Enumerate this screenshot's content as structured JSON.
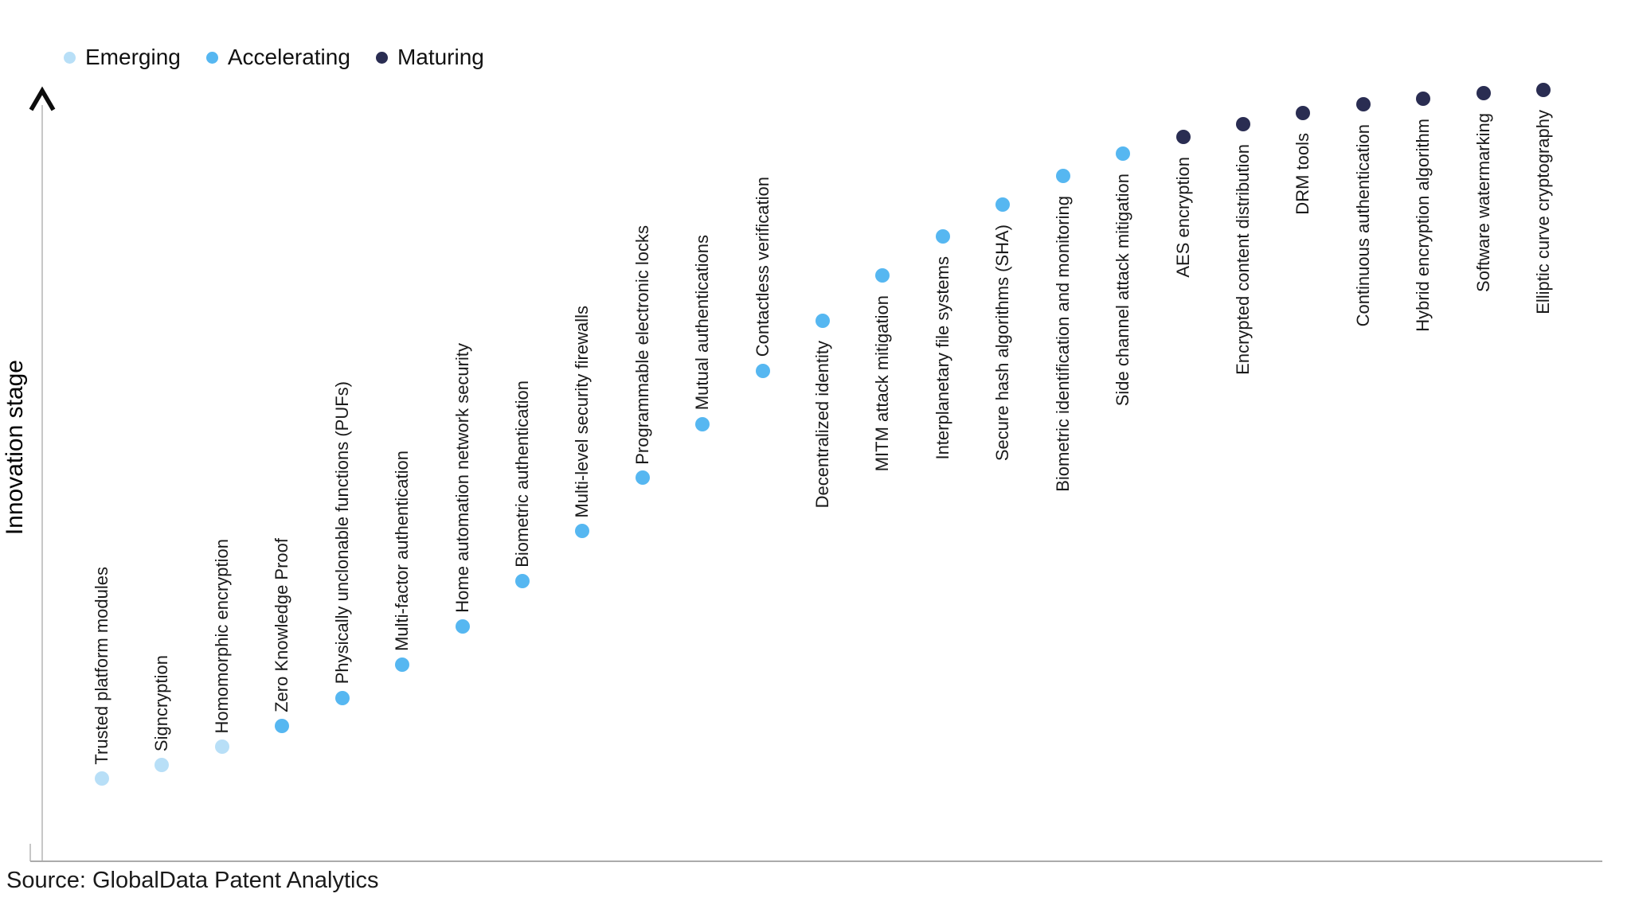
{
  "legend": {
    "items": [
      {
        "label": "Emerging",
        "color": "#b8dff7"
      },
      {
        "label": "Accelerating",
        "color": "#56b7f1"
      },
      {
        "label": "Maturing",
        "color": "#2a2d52"
      }
    ]
  },
  "axis": {
    "y_label": "Innovation stage"
  },
  "source": "Source: GlobalData Patent Analytics",
  "chart_data": {
    "type": "scatter",
    "title": "",
    "xlabel": "",
    "ylabel": "Innovation stage",
    "grid": false,
    "legend_position": "top-left",
    "legend": [
      "Emerging",
      "Accelerating",
      "Maturing"
    ],
    "y_axis": {
      "numeric_ticks": false,
      "arrow": true,
      "range_norm": [
        0,
        1
      ]
    },
    "x_axis": {
      "numeric_ticks": false,
      "note": "points evenly spaced in maturity order"
    },
    "points": [
      {
        "label": "Trusted platform modules",
        "stage": "Emerging",
        "innovation": 0.107,
        "label_side": "above"
      },
      {
        "label": "Signcryption",
        "stage": "Emerging",
        "innovation": 0.124,
        "label_side": "above"
      },
      {
        "label": "Homomorphic encryption",
        "stage": "Emerging",
        "innovation": 0.147,
        "label_side": "above"
      },
      {
        "label": "Zero Knowledge Proof",
        "stage": "Accelerating",
        "innovation": 0.174,
        "label_side": "above"
      },
      {
        "label": "Physically unclonable functions (PUFs)",
        "stage": "Accelerating",
        "innovation": 0.21,
        "label_side": "above"
      },
      {
        "label": "Multi-factor authentication",
        "stage": "Accelerating",
        "innovation": 0.252,
        "label_side": "above"
      },
      {
        "label": "Home automation network security",
        "stage": "Accelerating",
        "innovation": 0.301,
        "label_side": "above"
      },
      {
        "label": "Biometric authentication",
        "stage": "Accelerating",
        "innovation": 0.359,
        "label_side": "above"
      },
      {
        "label": "Multi-level security firewalls",
        "stage": "Accelerating",
        "innovation": 0.423,
        "label_side": "above"
      },
      {
        "label": "Programmable electronic locks",
        "stage": "Accelerating",
        "innovation": 0.491,
        "label_side": "above"
      },
      {
        "label": "Mutual authentications",
        "stage": "Accelerating",
        "innovation": 0.56,
        "label_side": "above"
      },
      {
        "label": "Contactless verification",
        "stage": "Accelerating",
        "innovation": 0.628,
        "label_side": "above"
      },
      {
        "label": "Decentralized identity",
        "stage": "Accelerating",
        "innovation": 0.692,
        "label_side": "below"
      },
      {
        "label": "MITM attack mitigation",
        "stage": "Accelerating",
        "innovation": 0.75,
        "label_side": "below"
      },
      {
        "label": "Interplanetary file systems",
        "stage": "Accelerating",
        "innovation": 0.8,
        "label_side": "below"
      },
      {
        "label": "Secure hash algorithms (SHA)",
        "stage": "Accelerating",
        "innovation": 0.84,
        "label_side": "below"
      },
      {
        "label": "Biometric identification and monitoring",
        "stage": "Accelerating",
        "innovation": 0.877,
        "label_side": "below"
      },
      {
        "label": "Side channel attack mitigation",
        "stage": "Accelerating",
        "innovation": 0.905,
        "label_side": "below"
      },
      {
        "label": "AES encryption",
        "stage": "Maturing",
        "innovation": 0.927,
        "label_side": "below"
      },
      {
        "label": "Encrypted content distribution",
        "stage": "Maturing",
        "innovation": 0.943,
        "label_side": "below"
      },
      {
        "label": "DRM tools",
        "stage": "Maturing",
        "innovation": 0.957,
        "label_side": "below"
      },
      {
        "label": "Continuous authentication",
        "stage": "Maturing",
        "innovation": 0.968,
        "label_side": "below"
      },
      {
        "label": "Hybrid encryption algorithm",
        "stage": "Maturing",
        "innovation": 0.976,
        "label_side": "below"
      },
      {
        "label": "Software watermarking",
        "stage": "Maturing",
        "innovation": 0.983,
        "label_side": "below"
      },
      {
        "label": "Elliptic curve cryptography",
        "stage": "Maturing",
        "innovation": 0.987,
        "label_side": "below"
      }
    ]
  }
}
